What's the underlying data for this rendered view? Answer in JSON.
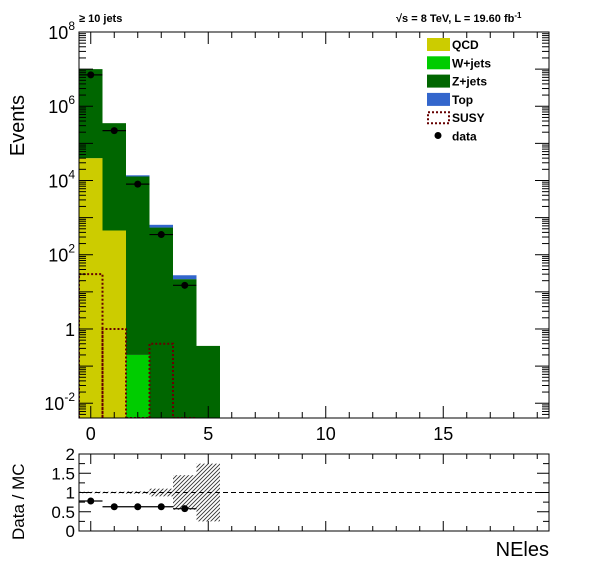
{
  "header": {
    "selection": "≥ 10 jets",
    "energy": "√s = 8 TeV, L = 19.60 fb",
    "lumi_exp": "-1"
  },
  "colors": {
    "qcd": "#cccc00",
    "wjets": "#00cc00",
    "zjets": "#006600",
    "top": "#3366cc",
    "susy": "#660000",
    "data": "#000000"
  },
  "chart_data": [
    {
      "type": "bar",
      "stacked": true,
      "xlabel": "NEles",
      "ylabel": "Events",
      "xlim": [
        -0.5,
        19.5
      ],
      "ylim": [
        0.004,
        100000000
      ],
      "log_y": true,
      "x_ticks": [
        0,
        5,
        10,
        15
      ],
      "y_ticks": [
        {
          "v": 0.01,
          "base": "10",
          "exp": "-2"
        },
        {
          "v": 1,
          "base": "1",
          "exp": ""
        },
        {
          "v": 100,
          "base": "10",
          "exp": "2"
        },
        {
          "v": 10000,
          "base": "10",
          "exp": "4"
        },
        {
          "v": 1000000,
          "base": "10",
          "exp": "6"
        },
        {
          "v": 100000000,
          "base": "10",
          "exp": "8"
        }
      ],
      "bins": [
        0,
        1,
        2,
        3,
        4,
        5
      ],
      "series": [
        {
          "name": "QCD",
          "key": "qcd",
          "values": [
            40000,
            450,
            0,
            0,
            0,
            0
          ]
        },
        {
          "name": "W+jets",
          "key": "wjets",
          "values": [
            0,
            0,
            0.2,
            0,
            0,
            0
          ]
        },
        {
          "name": "Z+jets",
          "key": "zjets",
          "values": [
            9960000,
            349550,
            12800,
            540,
            22,
            0.35
          ]
        },
        {
          "name": "Top",
          "key": "top",
          "values": [
            0,
            0,
            1000,
            100,
            6,
            0
          ]
        }
      ],
      "susy": {
        "name": "SUSY",
        "values": [
          30,
          1,
          0.002,
          0.4,
          0.002,
          0
        ]
      },
      "data": {
        "name": "data",
        "x": [
          0,
          1,
          2,
          3,
          4
        ],
        "y": [
          7000000,
          220000,
          8000,
          350,
          15
        ]
      },
      "legend_position": "top-right"
    },
    {
      "type": "scatter",
      "xlabel": "",
      "ylabel": "Data / MC",
      "ylim": [
        0,
        2
      ],
      "y_ticks": [
        "0",
        "0.5",
        "1",
        "1.5",
        "2"
      ],
      "reference_line": 1,
      "x": [
        0,
        1,
        2,
        3,
        4
      ],
      "y": [
        0.78,
        0.63,
        0.63,
        0.63,
        0.58
      ],
      "uncertainty_bands": [
        {
          "bin": 0,
          "low": 0.98,
          "high": 1.02
        },
        {
          "bin": 1,
          "low": 0.98,
          "high": 1.02
        },
        {
          "bin": 2,
          "low": 0.97,
          "high": 1.03
        },
        {
          "bin": 3,
          "low": 0.9,
          "high": 1.1
        },
        {
          "bin": 4,
          "low": 0.55,
          "high": 1.45
        },
        {
          "bin": 5,
          "low": 0.25,
          "high": 1.75
        }
      ]
    }
  ]
}
